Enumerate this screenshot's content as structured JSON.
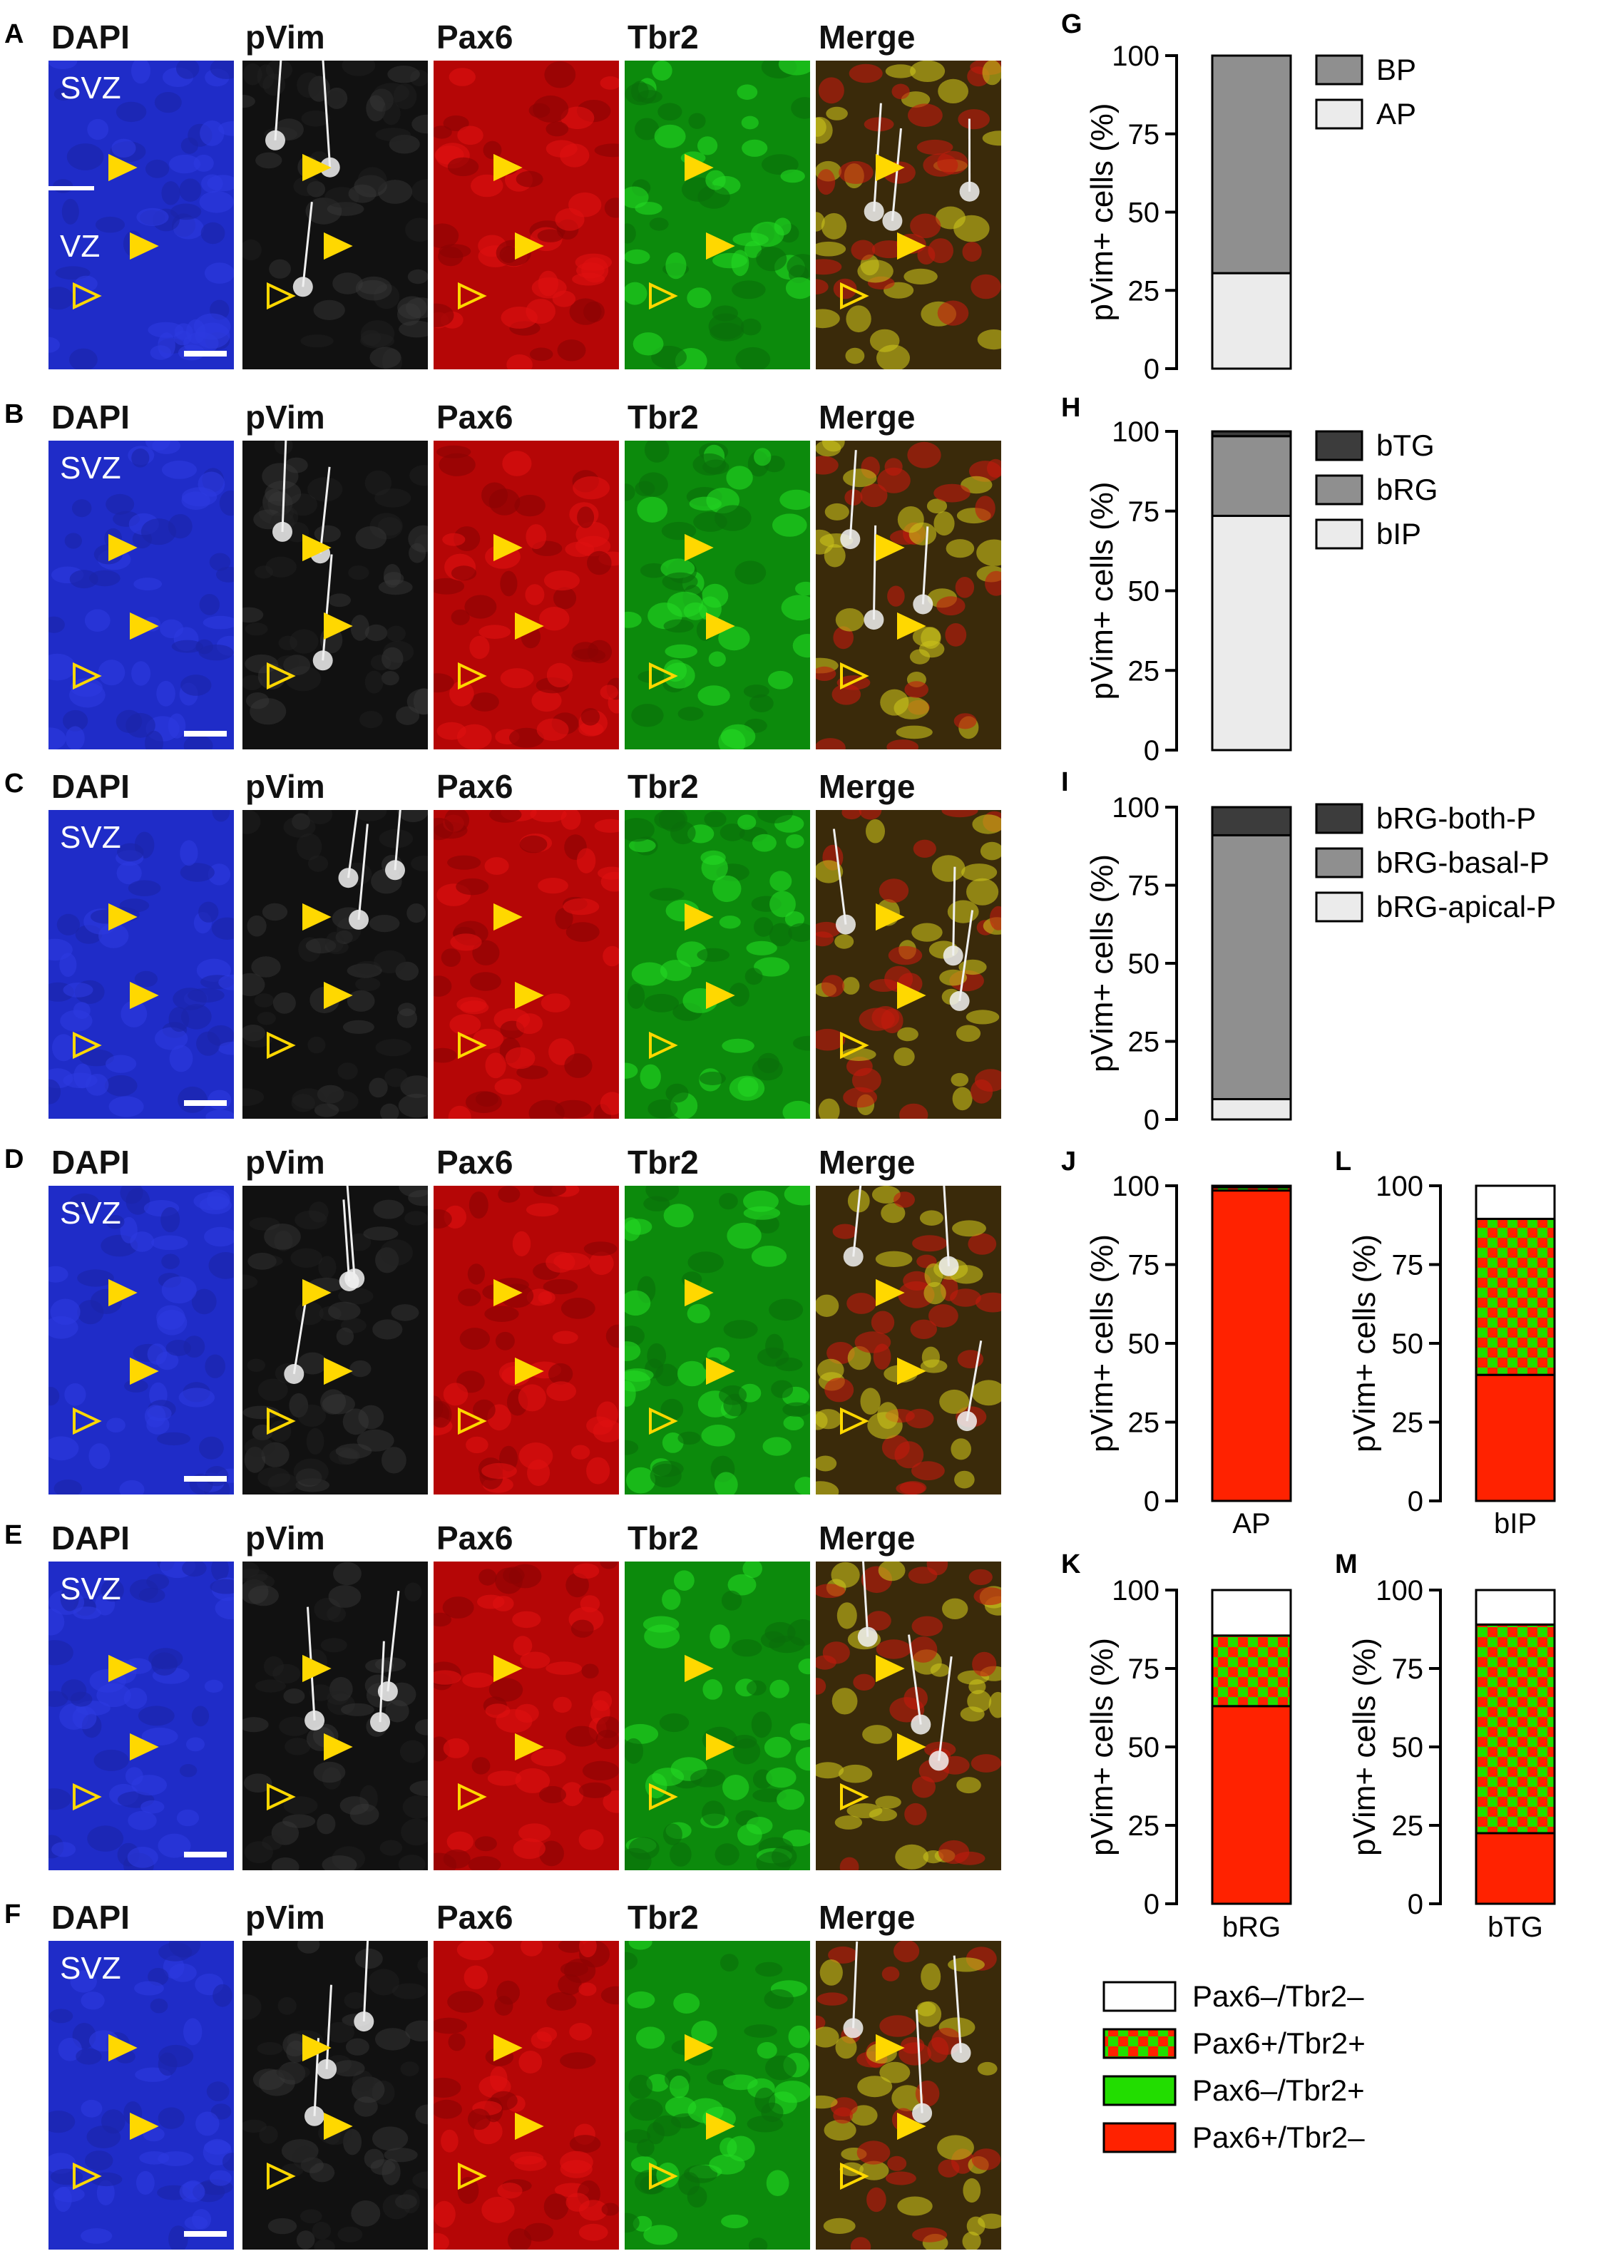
{
  "micro": {
    "rows": [
      {
        "letter": "A",
        "zones": [
          "SVZ",
          "VZ"
        ]
      },
      {
        "letter": "B",
        "zones": [
          "SVZ"
        ]
      },
      {
        "letter": "C",
        "zones": [
          "SVZ"
        ]
      },
      {
        "letter": "D",
        "zones": [
          "SVZ"
        ]
      },
      {
        "letter": "E",
        "zones": [
          "SVZ"
        ]
      },
      {
        "letter": "F",
        "zones": [
          "SVZ"
        ]
      }
    ],
    "channels": [
      "DAPI",
      "pVim",
      "Pax6",
      "Tbr2",
      "Merge"
    ],
    "colors": {
      "DAPI": "#1f2cc8",
      "pVim": "#111111",
      "Pax6": "#b50606",
      "Tbr2": "#0c8a0c",
      "Merge": "#3a2a0a"
    }
  },
  "chart_data": [
    {
      "panel": "G",
      "type": "bar",
      "stacked": true,
      "ylabel": "pVim+ cells (%)",
      "ylim": [
        0,
        100
      ],
      "yticks": [
        0,
        25,
        50,
        75,
        100
      ],
      "categories": [
        ""
      ],
      "series": [
        {
          "name": "AP",
          "values": [
            30.5
          ],
          "color": "#ebebeb"
        },
        {
          "name": "BP",
          "values": [
            69.5
          ],
          "color": "#8f8f8f"
        }
      ],
      "legend": [
        "BP",
        "AP"
      ]
    },
    {
      "panel": "H",
      "type": "bar",
      "stacked": true,
      "ylabel": "pVim+ cells (%)",
      "ylim": [
        0,
        100
      ],
      "yticks": [
        0,
        25,
        50,
        75,
        100
      ],
      "categories": [
        ""
      ],
      "series": [
        {
          "name": "bIP",
          "values": [
            73.5
          ],
          "color": "#ebebeb"
        },
        {
          "name": "bRG",
          "values": [
            25
          ],
          "color": "#8f8f8f"
        },
        {
          "name": "bTG",
          "values": [
            1.5
          ],
          "color": "#3c3c3c"
        }
      ],
      "legend": [
        "bTG",
        "bRG",
        "bIP"
      ]
    },
    {
      "panel": "I",
      "type": "bar",
      "stacked": true,
      "ylabel": "pVim+ cells (%)",
      "ylim": [
        0,
        100
      ],
      "yticks": [
        0,
        25,
        50,
        75,
        100
      ],
      "categories": [
        ""
      ],
      "series": [
        {
          "name": "bRG-apical-P",
          "values": [
            6.5
          ],
          "color": "#ebebeb"
        },
        {
          "name": "bRG-basal-P",
          "values": [
            84.5
          ],
          "color": "#8f8f8f"
        },
        {
          "name": "bRG-both-P",
          "values": [
            9
          ],
          "color": "#3c3c3c"
        }
      ],
      "legend": [
        "bRG-both-P",
        "bRG-basal-P",
        "bRG-apical-P"
      ]
    },
    {
      "panel": "J",
      "type": "bar",
      "stacked": true,
      "ylabel": "pVim+ cells (%)",
      "ylim": [
        0,
        100
      ],
      "yticks": [
        0,
        25,
        50,
        75,
        100
      ],
      "categories": [
        "AP"
      ],
      "series": [
        {
          "name": "Pax6+/Tbr2–",
          "values": [
            98.5
          ]
        },
        {
          "name": "Pax6–/Tbr2+",
          "values": [
            0
          ]
        },
        {
          "name": "Pax6+/Tbr2+",
          "values": [
            1
          ]
        },
        {
          "name": "Pax6–/Tbr2–",
          "values": [
            0.5
          ]
        }
      ]
    },
    {
      "panel": "L",
      "type": "bar",
      "stacked": true,
      "ylabel": "pVim+ cells (%)",
      "ylim": [
        0,
        100
      ],
      "yticks": [
        0,
        25,
        50,
        75,
        100
      ],
      "categories": [
        "bIP"
      ],
      "series": [
        {
          "name": "Pax6+/Tbr2–",
          "values": [
            40
          ]
        },
        {
          "name": "Pax6–/Tbr2+",
          "values": [
            0
          ]
        },
        {
          "name": "Pax6+/Tbr2+",
          "values": [
            49.5
          ]
        },
        {
          "name": "Pax6–/Tbr2–",
          "values": [
            10.5
          ]
        }
      ]
    },
    {
      "panel": "K",
      "type": "bar",
      "stacked": true,
      "ylabel": "pVim+ cells (%)",
      "ylim": [
        0,
        100
      ],
      "yticks": [
        0,
        25,
        50,
        75,
        100
      ],
      "categories": [
        "bRG"
      ],
      "series": [
        {
          "name": "Pax6+/Tbr2–",
          "values": [
            63
          ]
        },
        {
          "name": "Pax6–/Tbr2+",
          "values": [
            0
          ]
        },
        {
          "name": "Pax6+/Tbr2+",
          "values": [
            22.5
          ]
        },
        {
          "name": "Pax6–/Tbr2–",
          "values": [
            14.5
          ]
        }
      ]
    },
    {
      "panel": "M",
      "type": "bar",
      "stacked": true,
      "ylabel": "pVim+ cells (%)",
      "ylim": [
        0,
        100
      ],
      "yticks": [
        0,
        25,
        50,
        75,
        100
      ],
      "categories": [
        "bTG"
      ],
      "series": [
        {
          "name": "Pax6+/Tbr2–",
          "values": [
            22.5
          ]
        },
        {
          "name": "Pax6–/Tbr2+",
          "values": [
            0
          ]
        },
        {
          "name": "Pax6+/Tbr2+",
          "values": [
            66.5
          ]
        },
        {
          "name": "Pax6–/Tbr2–",
          "values": [
            11
          ]
        }
      ]
    }
  ],
  "legend_bottom": [
    {
      "label": "Pax6–/Tbr2–",
      "fill": "white"
    },
    {
      "label": "Pax6+/Tbr2+",
      "fill": "checker"
    },
    {
      "label": "Pax6–/Tbr2+",
      "fill": "green"
    },
    {
      "label": "Pax6+/Tbr2–",
      "fill": "red"
    }
  ],
  "fill_colors": {
    "red": "#ff2200",
    "green": "#22dd00",
    "white": "#ffffff",
    "outline": "#000000"
  }
}
